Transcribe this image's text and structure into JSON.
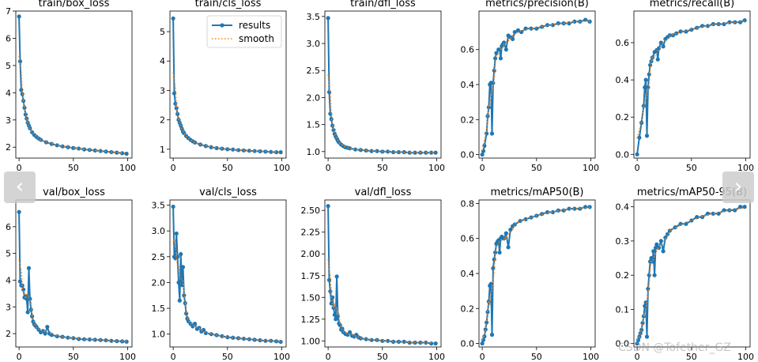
{
  "legend": {
    "results": "results",
    "smooth": "smooth"
  },
  "navigation": {
    "prev_label": "‹",
    "next_label": "›"
  },
  "watermark": "CSDN @Tofether_GZ",
  "colors": {
    "results": "#1f77b4",
    "smooth": "#ff7f0e",
    "axis": "#000000"
  },
  "chart_data": [
    {
      "type": "line",
      "title": "train/box_loss",
      "xlim": [
        -3,
        104
      ],
      "ylim": [
        1.6,
        7.0
      ],
      "xticks": [
        0,
        50,
        100
      ],
      "yticks": [
        2,
        3,
        4,
        5,
        6,
        7
      ],
      "ytick_labels": [
        "2",
        "3",
        "4",
        "5",
        "6",
        "7"
      ],
      "x": [
        0,
        1,
        2,
        3,
        4,
        5,
        6,
        7,
        8,
        9,
        10,
        12,
        14,
        16,
        18,
        20,
        25,
        30,
        35,
        40,
        45,
        50,
        55,
        60,
        65,
        70,
        75,
        80,
        85,
        90,
        95,
        99
      ],
      "y": [
        6.8,
        5.15,
        4.1,
        3.95,
        3.7,
        3.45,
        3.2,
        3.05,
        2.9,
        2.8,
        2.7,
        2.55,
        2.45,
        2.38,
        2.32,
        2.27,
        2.18,
        2.12,
        2.07,
        2.03,
        2.0,
        1.97,
        1.95,
        1.92,
        1.9,
        1.88,
        1.86,
        1.84,
        1.82,
        1.8,
        1.78,
        1.76
      ]
    },
    {
      "type": "line",
      "title": "train/cls_loss",
      "xlim": [
        -3,
        104
      ],
      "ylim": [
        0.7,
        5.7
      ],
      "xticks": [
        0,
        50,
        100
      ],
      "yticks": [
        1,
        2,
        3,
        4,
        5
      ],
      "ytick_labels": [
        "1",
        "2",
        "3",
        "4",
        "5"
      ],
      "legend": true,
      "x": [
        0,
        1,
        2,
        3,
        4,
        5,
        6,
        7,
        8,
        9,
        10,
        12,
        14,
        16,
        18,
        20,
        25,
        30,
        35,
        40,
        45,
        50,
        55,
        60,
        65,
        70,
        75,
        80,
        85,
        90,
        95,
        99
      ],
      "y": [
        5.45,
        2.9,
        2.55,
        2.4,
        2.2,
        2.0,
        1.9,
        1.8,
        1.7,
        1.6,
        1.55,
        1.45,
        1.38,
        1.32,
        1.27,
        1.23,
        1.16,
        1.11,
        1.07,
        1.04,
        1.02,
        1.0,
        0.99,
        0.97,
        0.96,
        0.95,
        0.94,
        0.93,
        0.92,
        0.91,
        0.9,
        0.9
      ]
    },
    {
      "type": "line",
      "title": "train/dfl_loss",
      "xlim": [
        -3,
        104
      ],
      "ylim": [
        0.88,
        3.6
      ],
      "xticks": [
        0,
        50,
        100
      ],
      "yticks": [
        1.0,
        1.5,
        2.0,
        2.5,
        3.0,
        3.5
      ],
      "ytick_labels": [
        "1.0",
        "1.5",
        "2.0",
        "2.5",
        "3.0",
        "3.5"
      ],
      "x": [
        0,
        1,
        2,
        3,
        4,
        5,
        6,
        7,
        8,
        9,
        10,
        12,
        14,
        16,
        18,
        20,
        25,
        30,
        35,
        40,
        45,
        50,
        55,
        60,
        65,
        70,
        75,
        80,
        85,
        90,
        95,
        99
      ],
      "y": [
        3.47,
        2.1,
        1.7,
        1.6,
        1.48,
        1.4,
        1.33,
        1.28,
        1.24,
        1.2,
        1.17,
        1.13,
        1.1,
        1.08,
        1.07,
        1.06,
        1.04,
        1.03,
        1.02,
        1.01,
        1.01,
        1.0,
        1.0,
        0.99,
        0.99,
        0.99,
        0.98,
        0.98,
        0.98,
        0.98,
        0.98,
        0.98
      ]
    },
    {
      "type": "line",
      "title": "metrics/precision(B)",
      "xlim": [
        -3,
        104
      ],
      "ylim": [
        -0.02,
        0.82
      ],
      "xticks": [
        0,
        50,
        100
      ],
      "yticks": [
        0,
        0.2,
        0.4,
        0.6
      ],
      "ytick_labels": [
        "0.0",
        "0.2",
        "0.4",
        "0.6"
      ],
      "x": [
        0,
        1,
        2,
        4,
        5,
        6,
        7,
        8,
        9,
        10,
        11,
        12,
        13,
        15,
        16,
        17,
        18,
        19,
        20,
        22,
        24,
        26,
        28,
        30,
        33,
        36,
        40,
        45,
        50,
        55,
        60,
        65,
        70,
        75,
        80,
        85,
        90,
        95,
        99
      ],
      "y": [
        0.0,
        0.02,
        0.05,
        0.12,
        0.22,
        0.27,
        0.4,
        0.41,
        0.12,
        0.41,
        0.48,
        0.55,
        0.58,
        0.6,
        0.6,
        0.55,
        0.62,
        0.63,
        0.64,
        0.6,
        0.68,
        0.67,
        0.66,
        0.7,
        0.71,
        0.7,
        0.72,
        0.72,
        0.72,
        0.73,
        0.74,
        0.74,
        0.75,
        0.75,
        0.75,
        0.76,
        0.76,
        0.77,
        0.76
      ]
    },
    {
      "type": "line",
      "title": "metrics/recall(B)",
      "xlim": [
        -3,
        104
      ],
      "ylim": [
        -0.02,
        0.77
      ],
      "xticks": [
        0,
        50,
        100
      ],
      "yticks": [
        0,
        0.2,
        0.4,
        0.6
      ],
      "ytick_labels": [
        "0.0",
        "0.2",
        "0.4",
        "0.6"
      ],
      "x": [
        0,
        2,
        4,
        6,
        7,
        8,
        9,
        10,
        11,
        12,
        13,
        14,
        16,
        18,
        19,
        20,
        22,
        24,
        26,
        28,
        30,
        33,
        36,
        40,
        45,
        50,
        55,
        60,
        65,
        70,
        75,
        80,
        85,
        90,
        95,
        99
      ],
      "y": [
        0.0,
        0.09,
        0.17,
        0.26,
        0.36,
        0.4,
        0.1,
        0.36,
        0.43,
        0.48,
        0.5,
        0.52,
        0.55,
        0.56,
        0.51,
        0.57,
        0.6,
        0.58,
        0.62,
        0.63,
        0.64,
        0.64,
        0.65,
        0.66,
        0.66,
        0.67,
        0.68,
        0.69,
        0.69,
        0.7,
        0.7,
        0.7,
        0.71,
        0.71,
        0.71,
        0.72
      ]
    },
    {
      "type": "line",
      "title": "val/box_loss",
      "xlim": [
        -3,
        104
      ],
      "ylim": [
        1.5,
        7.0
      ],
      "xticks": [
        0,
        50,
        100
      ],
      "yticks": [
        2,
        3,
        4,
        5,
        6
      ],
      "ytick_labels": [
        "2",
        "3",
        "4",
        "5",
        "6"
      ],
      "x": [
        0,
        1,
        2,
        3,
        4,
        5,
        6,
        7,
        8,
        9,
        10,
        11,
        12,
        13,
        14,
        15,
        16,
        18,
        20,
        22,
        24,
        26,
        28,
        30,
        35,
        40,
        45,
        50,
        55,
        60,
        65,
        70,
        75,
        80,
        85,
        90,
        95,
        99
      ],
      "y": [
        6.55,
        3.95,
        3.8,
        3.8,
        3.65,
        3.35,
        3.4,
        3.3,
        2.8,
        4.45,
        3.3,
        2.9,
        2.65,
        2.45,
        2.35,
        2.3,
        2.25,
        2.15,
        2.05,
        2.1,
        2.0,
        2.25,
        2.0,
        1.95,
        1.9,
        1.88,
        1.85,
        1.83,
        1.8,
        1.79,
        1.78,
        1.77,
        1.76,
        1.75,
        1.73,
        1.72,
        1.71,
        1.7
      ]
    },
    {
      "type": "line",
      "title": "val/cls_loss",
      "xlim": [
        -3,
        104
      ],
      "ylim": [
        0.75,
        3.6
      ],
      "xticks": [
        0,
        50,
        100
      ],
      "yticks": [
        1.0,
        1.5,
        2.0,
        2.5,
        3.0,
        3.5
      ],
      "ytick_labels": [
        "1.0",
        "1.5",
        "2.0",
        "2.5",
        "3.0",
        "3.5"
      ],
      "x": [
        0,
        1,
        2,
        3,
        4,
        5,
        6,
        7,
        8,
        9,
        10,
        11,
        12,
        13,
        14,
        16,
        18,
        20,
        22,
        24,
        26,
        28,
        30,
        35,
        40,
        45,
        50,
        55,
        60,
        65,
        70,
        75,
        80,
        85,
        90,
        95,
        99
      ],
      "y": [
        3.47,
        2.5,
        2.47,
        2.95,
        2.5,
        2.0,
        1.65,
        2.55,
        1.95,
        2.3,
        1.75,
        1.6,
        1.4,
        1.3,
        1.25,
        1.2,
        1.15,
        1.2,
        1.1,
        1.12,
        1.05,
        1.08,
        1.02,
        1.0,
        0.98,
        0.96,
        0.94,
        0.93,
        0.92,
        0.91,
        0.9,
        0.89,
        0.88,
        0.87,
        0.87,
        0.86,
        0.85
      ]
    },
    {
      "type": "line",
      "title": "val/dfl_loss",
      "xlim": [
        -3,
        104
      ],
      "ylim": [
        0.93,
        2.62
      ],
      "xticks": [
        0,
        50,
        100
      ],
      "yticks": [
        1.0,
        1.25,
        1.5,
        1.75,
        2.0,
        2.25,
        2.5
      ],
      "ytick_labels": [
        "1.00",
        "1.25",
        "1.50",
        "1.75",
        "2.00",
        "2.25",
        "2.50"
      ],
      "x": [
        0,
        1,
        2,
        3,
        4,
        5,
        6,
        7,
        8,
        9,
        10,
        11,
        12,
        13,
        14,
        16,
        18,
        20,
        22,
        24,
        26,
        28,
        30,
        35,
        40,
        45,
        50,
        55,
        60,
        65,
        70,
        75,
        80,
        85,
        90,
        95,
        99
      ],
      "y": [
        2.55,
        1.7,
        1.57,
        1.43,
        1.5,
        1.38,
        1.3,
        1.25,
        1.74,
        1.28,
        1.2,
        1.18,
        1.13,
        1.14,
        1.1,
        1.08,
        1.07,
        1.1,
        1.06,
        1.05,
        1.07,
        1.04,
        1.03,
        1.02,
        1.01,
        1.01,
        1.0,
        1.0,
        0.99,
        0.99,
        0.99,
        0.98,
        0.98,
        0.98,
        0.98,
        0.97,
        0.97
      ]
    },
    {
      "type": "line",
      "title": "metrics/mAP50(B)",
      "xlim": [
        -3,
        104
      ],
      "ylim": [
        -0.02,
        0.82
      ],
      "xticks": [
        0,
        50,
        100
      ],
      "yticks": [
        0,
        0.2,
        0.4,
        0.6,
        0.8
      ],
      "ytick_labels": [
        "0.0",
        "0.2",
        "0.4",
        "0.6",
        "0.8"
      ],
      "x": [
        0,
        1,
        2,
        3,
        4,
        5,
        6,
        7,
        8,
        9,
        10,
        11,
        12,
        13,
        14,
        15,
        16,
        17,
        18,
        20,
        22,
        24,
        26,
        28,
        30,
        35,
        40,
        45,
        50,
        55,
        60,
        65,
        70,
        75,
        80,
        85,
        90,
        95,
        99
      ],
      "y": [
        0.0,
        0.02,
        0.04,
        0.08,
        0.12,
        0.18,
        0.24,
        0.33,
        0.34,
        0.05,
        0.43,
        0.48,
        0.52,
        0.57,
        0.58,
        0.59,
        0.52,
        0.6,
        0.61,
        0.6,
        0.63,
        0.55,
        0.65,
        0.67,
        0.68,
        0.7,
        0.71,
        0.72,
        0.73,
        0.74,
        0.75,
        0.75,
        0.76,
        0.76,
        0.77,
        0.77,
        0.77,
        0.78,
        0.78
      ]
    },
    {
      "type": "line",
      "title": "metrics/mAP50-95(B)",
      "xlim": [
        -3,
        104
      ],
      "ylim": [
        -0.01,
        0.42
      ],
      "xticks": [
        0,
        50,
        100
      ],
      "yticks": [
        0,
        0.1,
        0.2,
        0.3,
        0.4
      ],
      "ytick_labels": [
        "0.0",
        "0.1",
        "0.2",
        "0.3",
        "0.4"
      ],
      "x": [
        0,
        1,
        2,
        3,
        4,
        5,
        6,
        7,
        8,
        9,
        10,
        11,
        12,
        13,
        14,
        15,
        16,
        17,
        18,
        20,
        22,
        24,
        26,
        28,
        30,
        35,
        40,
        45,
        50,
        55,
        60,
        65,
        70,
        75,
        80,
        85,
        90,
        95,
        99
      ],
      "y": [
        0.0,
        0.01,
        0.02,
        0.03,
        0.04,
        0.06,
        0.08,
        0.11,
        0.12,
        0.02,
        0.16,
        0.2,
        0.24,
        0.25,
        0.24,
        0.27,
        0.2,
        0.28,
        0.29,
        0.28,
        0.3,
        0.27,
        0.31,
        0.32,
        0.33,
        0.34,
        0.35,
        0.35,
        0.36,
        0.37,
        0.37,
        0.38,
        0.38,
        0.38,
        0.39,
        0.39,
        0.39,
        0.4,
        0.4
      ]
    }
  ]
}
